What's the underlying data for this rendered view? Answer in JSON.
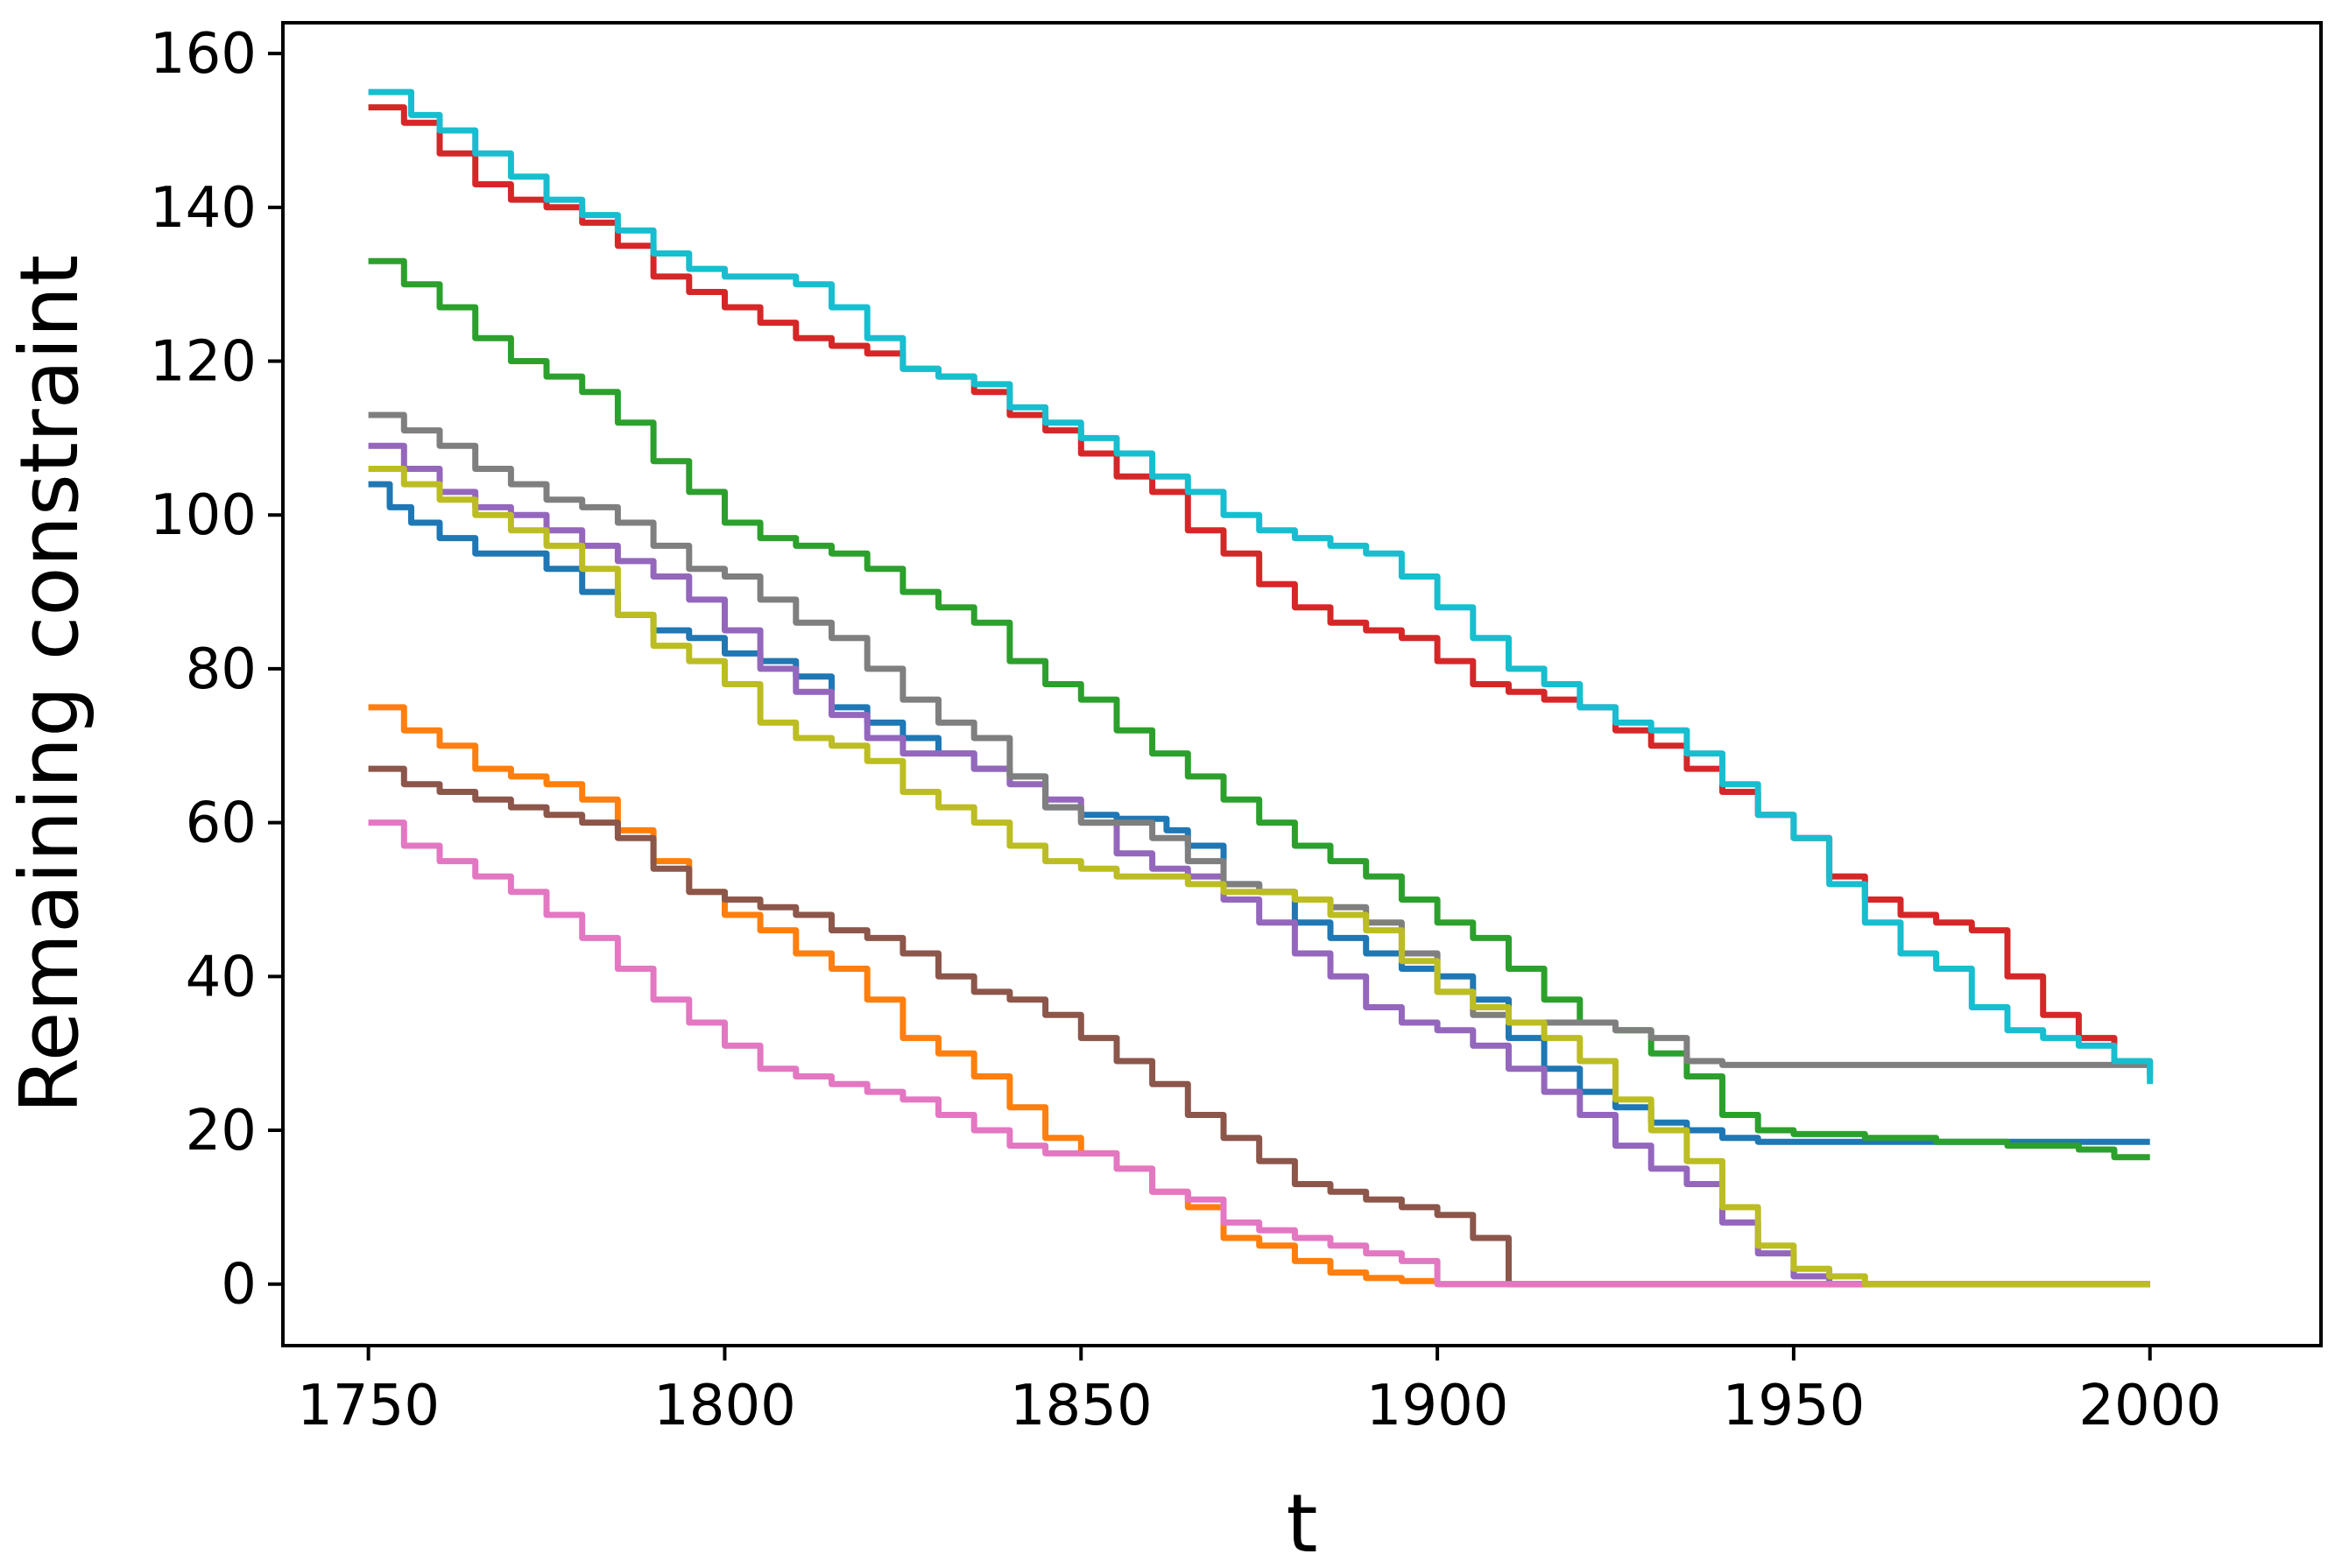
{
  "chart_data": {
    "type": "line",
    "xlabel": "t",
    "ylabel": "Remaining constraint",
    "xlim": [
      1738,
      2024
    ],
    "ylim": [
      -8,
      164
    ],
    "xticks": [
      1750,
      1800,
      1850,
      1900,
      1950,
      2000
    ],
    "yticks": [
      0,
      20,
      40,
      60,
      80,
      100,
      120,
      140,
      160
    ],
    "grid": false,
    "legend": "none",
    "series": [
      {
        "color": "#1f77b4",
        "x": [
          1750,
          1753,
          1756,
          1760,
          1765,
          1770,
          1775,
          1780,
          1785,
          1790,
          1795,
          1800,
          1805,
          1810,
          1815,
          1820,
          1825,
          1830,
          1835,
          1840,
          1845,
          1850,
          1855,
          1860,
          1862,
          1865,
          1870,
          1875,
          1880,
          1885,
          1890,
          1895,
          1900,
          1905,
          1910,
          1915,
          1920,
          1925,
          1930,
          1935,
          1940,
          1945,
          1950,
          1955,
          1960,
          1970,
          1980,
          1990,
          2000
        ],
        "y": [
          104,
          101,
          99,
          97,
          95,
          95,
          93,
          90,
          87,
          85,
          84,
          82,
          81,
          79,
          75,
          73,
          71,
          69,
          67,
          66,
          62,
          61,
          60.5,
          60.5,
          59,
          57,
          52,
          51,
          47,
          45,
          43,
          41,
          40,
          37,
          32,
          28,
          25,
          23,
          21,
          20,
          19,
          18.5,
          18.5,
          18.5,
          18.5,
          18.5,
          18.5,
          18.5,
          18.5
        ]
      },
      {
        "color": "#ff7f0e",
        "x": [
          1750,
          1755,
          1760,
          1765,
          1770,
          1775,
          1780,
          1785,
          1790,
          1795,
          1800,
          1805,
          1810,
          1815,
          1820,
          1825,
          1830,
          1835,
          1840,
          1845,
          1850,
          1855,
          1860,
          1865,
          1870,
          1875,
          1880,
          1885,
          1890,
          1895,
          1900,
          1910,
          1920,
          1950,
          2000
        ],
        "y": [
          75,
          72,
          70,
          67,
          66,
          65,
          63,
          59,
          55,
          51,
          48,
          46,
          43,
          41,
          37,
          32,
          30,
          27,
          23,
          19,
          17,
          15,
          12,
          10,
          6,
          5,
          3,
          1.5,
          0.8,
          0.4,
          0,
          0,
          0,
          0,
          0
        ]
      },
      {
        "color": "#2ca02c",
        "x": [
          1750,
          1755,
          1760,
          1765,
          1770,
          1775,
          1780,
          1785,
          1790,
          1795,
          1800,
          1805,
          1810,
          1815,
          1820,
          1825,
          1830,
          1835,
          1840,
          1845,
          1850,
          1855,
          1860,
          1865,
          1870,
          1875,
          1880,
          1885,
          1890,
          1895,
          1900,
          1905,
          1910,
          1915,
          1920,
          1925,
          1930,
          1935,
          1940,
          1945,
          1950,
          1960,
          1970,
          1980,
          1990,
          1995,
          2000
        ],
        "y": [
          133,
          130,
          127,
          123,
          120,
          118,
          116,
          112,
          107,
          103,
          99,
          97,
          96,
          95,
          93,
          90,
          88,
          86,
          81,
          78,
          76,
          72,
          69,
          66,
          63,
          60,
          57,
          55,
          53,
          50,
          47,
          45,
          41,
          37,
          34,
          33,
          30,
          27,
          22,
          20,
          19.5,
          19,
          18.5,
          18,
          17.5,
          16.5,
          16.5
        ]
      },
      {
        "color": "#d62728",
        "x": [
          1750,
          1755,
          1760,
          1765,
          1770,
          1775,
          1780,
          1785,
          1790,
          1795,
          1800,
          1805,
          1810,
          1815,
          1820,
          1825,
          1830,
          1835,
          1840,
          1845,
          1850,
          1855,
          1860,
          1865,
          1870,
          1875,
          1880,
          1885,
          1890,
          1895,
          1900,
          1905,
          1910,
          1915,
          1920,
          1925,
          1930,
          1935,
          1940,
          1945,
          1950,
          1955,
          1960,
          1965,
          1970,
          1975,
          1980,
          1985,
          1990,
          1995,
          2000
        ],
        "y": [
          153,
          151,
          147,
          143,
          141,
          140,
          138,
          135,
          131,
          129,
          127,
          125,
          123,
          122,
          121,
          119,
          118,
          116,
          113,
          111,
          108,
          105,
          103,
          98,
          95,
          91,
          88,
          86,
          85,
          84,
          81,
          78,
          77,
          76,
          75,
          72,
          70,
          67,
          64,
          61,
          58,
          53,
          50,
          48,
          47,
          46,
          40,
          35,
          32,
          29,
          27
        ]
      },
      {
        "color": "#9467bd",
        "x": [
          1750,
          1755,
          1760,
          1765,
          1770,
          1775,
          1780,
          1785,
          1790,
          1795,
          1800,
          1805,
          1810,
          1815,
          1820,
          1825,
          1830,
          1835,
          1840,
          1845,
          1850,
          1855,
          1860,
          1865,
          1870,
          1875,
          1880,
          1885,
          1890,
          1895,
          1900,
          1905,
          1910,
          1915,
          1920,
          1925,
          1930,
          1935,
          1940,
          1945,
          1950,
          1955,
          1960,
          2000
        ],
        "y": [
          109,
          106,
          103,
          101,
          100,
          98,
          96,
          94,
          92,
          89,
          85,
          80,
          77,
          74,
          71,
          69,
          69,
          67,
          65,
          63,
          60,
          56,
          54,
          53,
          50,
          47,
          43,
          40,
          36,
          34,
          33,
          31,
          28,
          25,
          22,
          18,
          15,
          13,
          8,
          4,
          1,
          0,
          0,
          0
        ]
      },
      {
        "color": "#8c564b",
        "x": [
          1750,
          1755,
          1760,
          1765,
          1770,
          1775,
          1780,
          1785,
          1790,
          1795,
          1800,
          1805,
          1810,
          1815,
          1820,
          1825,
          1830,
          1835,
          1840,
          1845,
          1850,
          1855,
          1860,
          1865,
          1870,
          1875,
          1880,
          1885,
          1890,
          1895,
          1900,
          1905,
          1910,
          1920,
          1950,
          2000
        ],
        "y": [
          67,
          65,
          64,
          63,
          62,
          61,
          60,
          58,
          54,
          51,
          50,
          49,
          48,
          46,
          45,
          43,
          40,
          38,
          37,
          35,
          32,
          29,
          26,
          22,
          19,
          16,
          13,
          12,
          11,
          10,
          9,
          6,
          0,
          0,
          0,
          0
        ]
      },
      {
        "color": "#e377c2",
        "x": [
          1750,
          1755,
          1760,
          1765,
          1770,
          1775,
          1780,
          1785,
          1790,
          1795,
          1800,
          1805,
          1810,
          1815,
          1820,
          1825,
          1830,
          1835,
          1840,
          1845,
          1850,
          1855,
          1860,
          1865,
          1870,
          1875,
          1880,
          1885,
          1890,
          1895,
          1900,
          1905,
          1910,
          1950,
          2000
        ],
        "y": [
          60,
          57,
          55,
          53,
          51,
          48,
          45,
          41,
          37,
          34,
          31,
          28,
          27,
          26,
          25,
          24,
          22,
          20,
          18,
          17,
          17,
          15,
          12,
          11,
          8,
          7,
          6,
          5,
          4,
          3,
          0,
          0,
          0,
          0,
          0
        ]
      },
      {
        "color": "#7f7f7f",
        "x": [
          1750,
          1755,
          1760,
          1765,
          1770,
          1775,
          1780,
          1785,
          1790,
          1795,
          1800,
          1805,
          1810,
          1815,
          1820,
          1825,
          1830,
          1835,
          1840,
          1845,
          1850,
          1855,
          1860,
          1865,
          1870,
          1875,
          1880,
          1885,
          1890,
          1895,
          1900,
          1905,
          1910,
          1915,
          1920,
          1925,
          1930,
          1935,
          1940,
          1950,
          1960,
          1970,
          1980,
          1990,
          2000
        ],
        "y": [
          113,
          111,
          109,
          106,
          104,
          102,
          101,
          99,
          96,
          93,
          92,
          89,
          86,
          84,
          80,
          76,
          73,
          71,
          66,
          62,
          60,
          60,
          58,
          55,
          52,
          51,
          50,
          49,
          47,
          43,
          38,
          35,
          34,
          34,
          34,
          33,
          32,
          29,
          28.5,
          28.5,
          28.5,
          28.5,
          28.5,
          28.5,
          28.5
        ]
      },
      {
        "color": "#bcbd22",
        "x": [
          1750,
          1755,
          1760,
          1765,
          1770,
          1775,
          1780,
          1785,
          1790,
          1795,
          1800,
          1805,
          1810,
          1815,
          1820,
          1825,
          1830,
          1835,
          1840,
          1845,
          1850,
          1855,
          1860,
          1865,
          1870,
          1875,
          1880,
          1885,
          1890,
          1895,
          1900,
          1905,
          1910,
          1915,
          1920,
          1925,
          1930,
          1935,
          1940,
          1945,
          1950,
          1955,
          1960,
          2000
        ],
        "y": [
          106,
          104,
          102,
          100,
          98,
          96,
          93,
          87,
          83,
          81,
          78,
          73,
          71,
          70,
          68,
          64,
          62,
          60,
          57,
          55,
          54,
          53,
          53,
          52,
          51,
          51,
          50,
          48,
          46,
          42,
          38,
          36,
          34,
          32,
          29,
          24,
          20,
          16,
          10,
          5,
          2,
          1,
          0,
          0
        ]
      },
      {
        "color": "#17becf",
        "x": [
          1750,
          1753,
          1756,
          1760,
          1765,
          1770,
          1775,
          1780,
          1785,
          1790,
          1795,
          1800,
          1805,
          1810,
          1815,
          1820,
          1825,
          1830,
          1835,
          1840,
          1845,
          1850,
          1855,
          1860,
          1865,
          1870,
          1875,
          1880,
          1885,
          1890,
          1895,
          1900,
          1905,
          1910,
          1915,
          1920,
          1925,
          1930,
          1935,
          1940,
          1945,
          1950,
          1955,
          1960,
          1965,
          1970,
          1975,
          1980,
          1985,
          1990,
          1995,
          2000
        ],
        "y": [
          155,
          155,
          152,
          150,
          147,
          144,
          141,
          139,
          137,
          134,
          132,
          131,
          131,
          130,
          127,
          123,
          119,
          118,
          117,
          114,
          112,
          110,
          108,
          105,
          103,
          100,
          98,
          97,
          96,
          95,
          92,
          88,
          84,
          80,
          78,
          75,
          73,
          72,
          69,
          65,
          61,
          58,
          52,
          47,
          43,
          41,
          36,
          33,
          32,
          31,
          29,
          26
        ]
      }
    ]
  }
}
